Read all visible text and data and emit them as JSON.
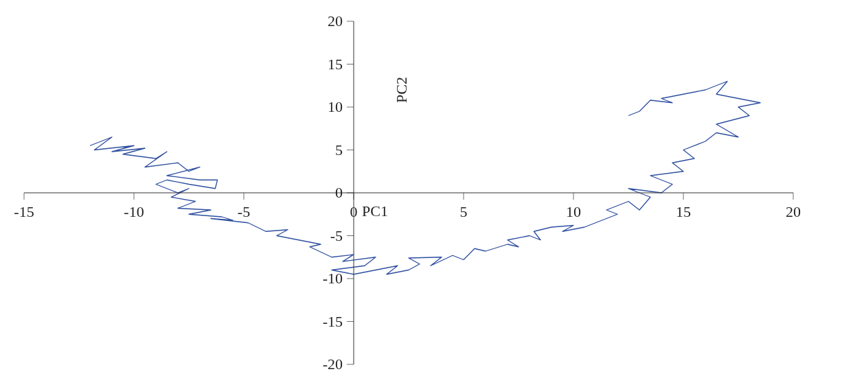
{
  "chart_data": {
    "type": "line",
    "xlabel": "PC1",
    "ylabel": "PC2",
    "xlim": [
      -15,
      20
    ],
    "xticks": [
      -15,
      -10,
      -5,
      0,
      5,
      10,
      15,
      20
    ],
    "ylim": [
      -20,
      20
    ],
    "yticks": [
      -20,
      -15,
      -10,
      -5,
      0,
      5,
      10,
      15,
      20
    ],
    "grid": false,
    "marker": "none",
    "line_style": "solid",
    "series": [
      {
        "color": "#2e4fa0",
        "x": [
          -12,
          -11,
          -11.8,
          -10,
          -11,
          -9.5,
          -10.5,
          -9,
          -8.5,
          -9.5,
          -8,
          -7.5,
          -7,
          -8.5,
          -7,
          -6.2,
          -6.3,
          -7.5,
          -8.5,
          -9,
          -8,
          -7.5,
          -8.3,
          -7.2,
          -8,
          -6.5,
          -7.5,
          -6,
          -5.5,
          -6.5,
          -4.8,
          -4,
          -3,
          -3.5,
          -2.5,
          -1.5,
          -2,
          -1,
          0,
          -0.5,
          1,
          0.5,
          -1,
          0,
          1,
          2,
          1.5,
          2.5,
          3,
          2.5,
          4,
          3.5,
          4.5,
          5,
          5.5,
          6,
          7,
          7.5,
          7,
          8,
          8.5,
          8.2,
          9,
          10,
          9.5,
          10.5,
          11,
          12,
          11.5,
          12.5,
          13,
          13.5,
          12.5,
          14,
          14.5,
          13.5,
          15,
          14.5,
          15.5,
          15,
          16,
          16.5,
          17.5,
          16.5,
          18,
          17.5,
          18.5,
          17.5,
          16.5,
          17,
          16,
          15,
          14,
          14.5,
          13.5,
          13,
          12.5
        ],
        "values": [
          5.5,
          6.5,
          5,
          5.5,
          4.8,
          5.2,
          4.5,
          4,
          4.8,
          3,
          3.5,
          2.5,
          3,
          2,
          1.5,
          1.5,
          0.5,
          1,
          1.5,
          1,
          0,
          0.5,
          -0.5,
          -1,
          -1.8,
          -2,
          -2.5,
          -2.8,
          -3.2,
          -3,
          -3.5,
          -4.5,
          -4.3,
          -5,
          -5.5,
          -6,
          -6.3,
          -7.5,
          -7.2,
          -8,
          -7.5,
          -8.5,
          -9,
          -9.5,
          -9,
          -8.5,
          -9.5,
          -9,
          -8.3,
          -7.6,
          -7.5,
          -8.5,
          -7.3,
          -7.8,
          -6.5,
          -6.8,
          -6,
          -6.3,
          -5.5,
          -5,
          -5.5,
          -4.5,
          -4,
          -3.8,
          -4.5,
          -4,
          -3.5,
          -2.5,
          -2,
          -1,
          -2,
          -0.5,
          0.5,
          0,
          1,
          2,
          2.5,
          3.5,
          4,
          5,
          6,
          7,
          6.5,
          8,
          9,
          10,
          10.5,
          11,
          11.5,
          13,
          12,
          11.5,
          11,
          10.5,
          10.8,
          9.5,
          9
        ]
      }
    ]
  }
}
